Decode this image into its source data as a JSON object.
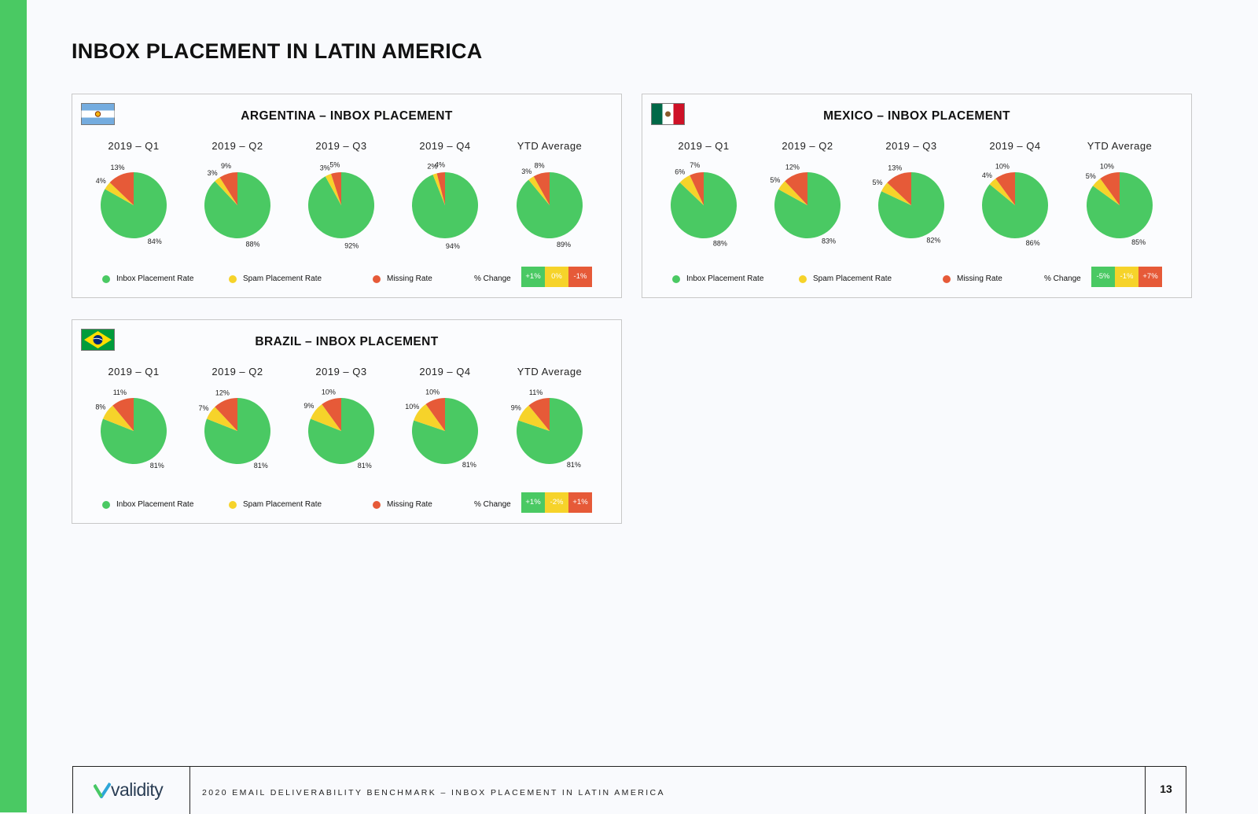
{
  "page": {
    "title": "INBOX PLACEMENT IN LATIN AMERICA"
  },
  "colors": {
    "inbox": "#4ac963",
    "spam": "#f6d32a",
    "missing": "#e65a38",
    "sidebar": "#4ac963"
  },
  "legend": {
    "inbox": "Inbox Placement Rate",
    "spam": "Spam Placement Rate",
    "missing": "Missing Rate",
    "change": "% Change"
  },
  "chart_data": [
    {
      "type": "pie",
      "title": "ARGENTINA – INBOX PLACEMENT",
      "flag": "argentina-flag",
      "categories": [
        "Inbox Placement Rate",
        "Spam Placement Rate",
        "Missing Rate"
      ],
      "pies": [
        {
          "label": "2019 – Q1",
          "values": [
            84,
            4,
            13
          ],
          "labels": [
            "84%",
            "4%",
            "13%"
          ]
        },
        {
          "label": "2019 – Q2",
          "values": [
            88,
            3,
            9
          ],
          "labels": [
            "88%",
            "3%",
            "9%"
          ]
        },
        {
          "label": "2019 – Q3",
          "values": [
            92,
            3,
            5
          ],
          "labels": [
            "92%",
            "3%",
            "5%"
          ]
        },
        {
          "label": "2019 – Q4",
          "values": [
            94,
            2,
            4
          ],
          "labels": [
            "94%",
            "2%",
            "4%"
          ]
        },
        {
          "label": "YTD Average",
          "values": [
            89,
            3,
            8
          ],
          "labels": [
            "89%",
            "3%",
            "8%"
          ]
        }
      ],
      "change": [
        "+1%",
        "0%",
        "-1%"
      ]
    },
    {
      "type": "pie",
      "title": "MEXICO – INBOX PLACEMENT",
      "flag": "mexico-flag",
      "categories": [
        "Inbox Placement Rate",
        "Spam Placement Rate",
        "Missing Rate"
      ],
      "pies": [
        {
          "label": "2019 – Q1",
          "values": [
            88,
            6,
            7
          ],
          "labels": [
            "88%",
            "6%",
            "7%"
          ]
        },
        {
          "label": "2019 – Q2",
          "values": [
            83,
            5,
            12
          ],
          "labels": [
            "83%",
            "5%",
            "12%"
          ]
        },
        {
          "label": "2019 – Q3",
          "values": [
            82,
            5,
            13
          ],
          "labels": [
            "82%",
            "5%",
            "13%"
          ]
        },
        {
          "label": "2019 – Q4",
          "values": [
            86,
            4,
            10
          ],
          "labels": [
            "86%",
            "4%",
            "10%"
          ]
        },
        {
          "label": "YTD Average",
          "values": [
            85,
            5,
            10
          ],
          "labels": [
            "85%",
            "5%",
            "10%"
          ]
        }
      ],
      "change": [
        "-5%",
        "-1%",
        "+7%"
      ]
    },
    {
      "type": "pie",
      "title": "BRAZIL – INBOX PLACEMENT",
      "flag": "brazil-flag",
      "categories": [
        "Inbox Placement Rate",
        "Spam Placement Rate",
        "Missing Rate"
      ],
      "pies": [
        {
          "label": "2019 – Q1",
          "values": [
            81,
            8,
            11
          ],
          "labels": [
            "81%",
            "8%",
            "11%"
          ]
        },
        {
          "label": "2019 – Q2",
          "values": [
            81,
            7,
            12
          ],
          "labels": [
            "81%",
            "7%",
            "12%"
          ]
        },
        {
          "label": "2019 – Q3",
          "values": [
            81,
            9,
            10
          ],
          "labels": [
            "81%",
            "9%",
            "10%"
          ]
        },
        {
          "label": "2019 – Q4",
          "values": [
            81,
            10,
            10
          ],
          "labels": [
            "81%",
            "10%",
            "10%"
          ]
        },
        {
          "label": "YTD Average",
          "values": [
            81,
            9,
            11
          ],
          "labels": [
            "81%",
            "9%",
            "11%"
          ]
        }
      ],
      "change": [
        "+1%",
        "-2%",
        "+1%"
      ]
    }
  ],
  "footer": {
    "logo_text": "validity",
    "text": "2020 EMAIL DELIVERABILITY BENCHMARK – INBOX PLACEMENT IN LATIN AMERICA",
    "page_number": "13"
  }
}
